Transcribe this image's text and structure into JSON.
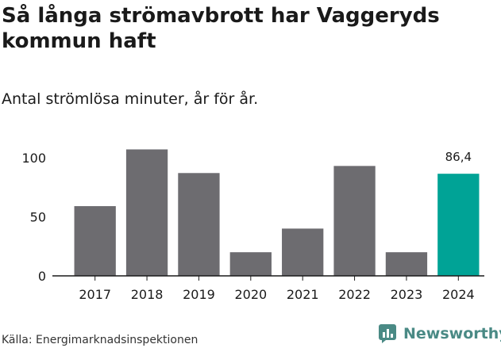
{
  "title": "Så långa strömavbrott har Vaggeryds kommun haft",
  "subtitle": "Antal strömlösa minuter, år för år.",
  "source": "Källa: Energimarknadsinspektionen",
  "brand": {
    "name": "Newsworthy",
    "icon": "newsworthy-logo-icon",
    "color": "#4a8a85"
  },
  "chart_data": {
    "type": "bar",
    "categories": [
      "2017",
      "2018",
      "2019",
      "2020",
      "2021",
      "2022",
      "2023",
      "2024"
    ],
    "values": [
      59,
      107,
      87,
      20,
      40,
      93,
      20,
      86.4
    ],
    "yticks": [
      "0",
      "50",
      "100"
    ],
    "ylim": [
      0,
      110
    ],
    "highlight_index": 7,
    "highlight_label": "86,4",
    "colors": {
      "bar": "#6d6c70",
      "highlight": "#00a396"
    },
    "grid": false
  }
}
